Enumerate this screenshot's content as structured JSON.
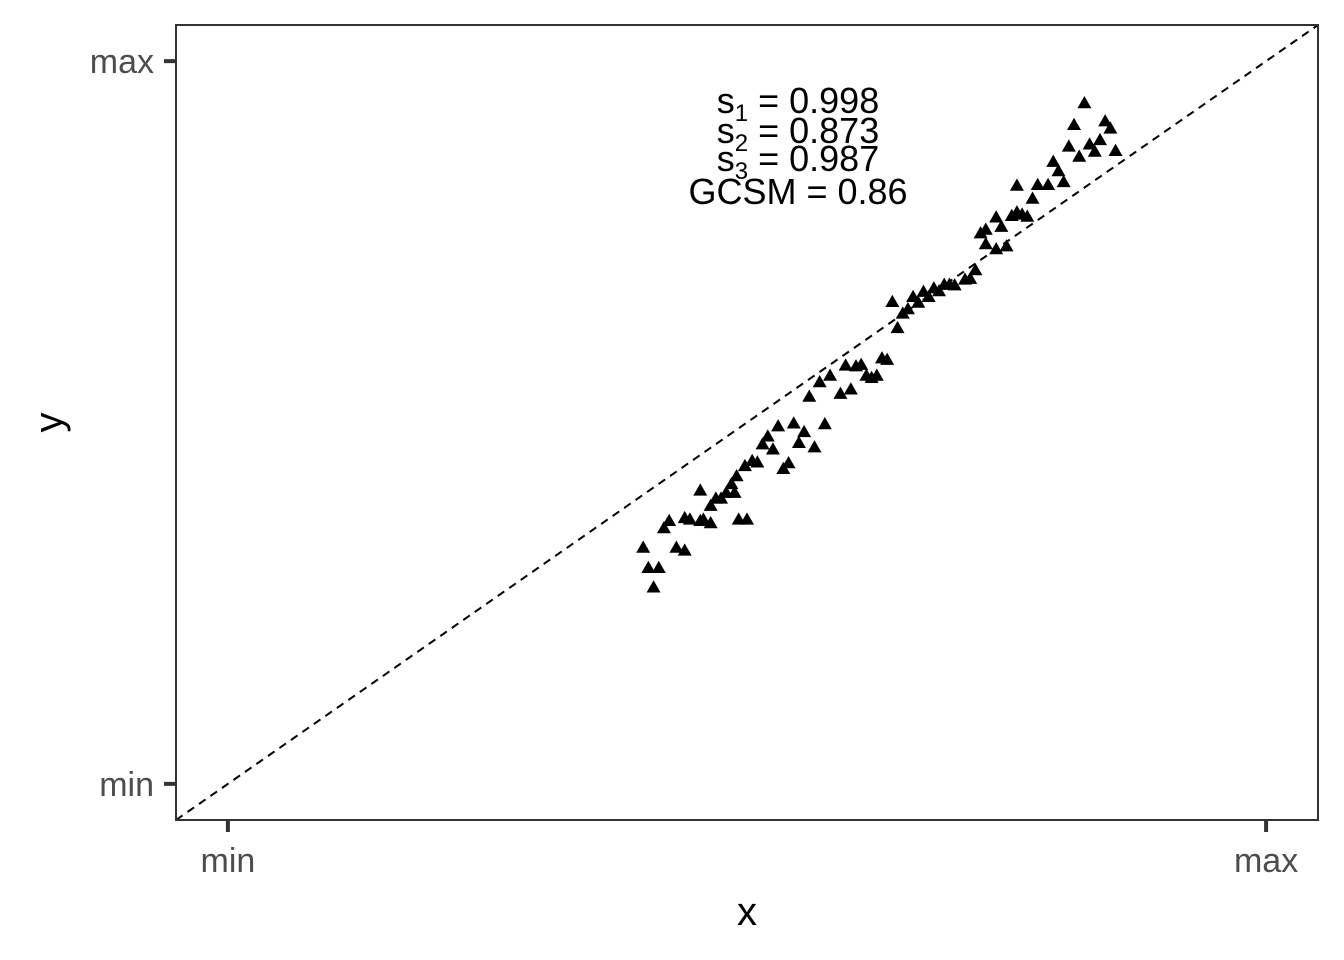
{
  "chart_data": {
    "type": "scatter",
    "xlabel": "x",
    "ylabel": "y",
    "xlim": [
      -0.05,
      1.05
    ],
    "ylim": [
      -0.05,
      1.05
    ],
    "x_ticks": [
      {
        "value": 0,
        "label": "min"
      },
      {
        "value": 1,
        "label": "max"
      }
    ],
    "y_ticks": [
      {
        "value": 0,
        "label": "min"
      },
      {
        "value": 1,
        "label": "max"
      }
    ],
    "grid": false,
    "reference_line": {
      "style": "dashed",
      "slope": 1,
      "intercept": 0
    },
    "marker": "triangle",
    "annotations": [
      {
        "name": "s",
        "sub": "1",
        "value": "0.998"
      },
      {
        "name": "s",
        "sub": "2",
        "value": "0.873"
      },
      {
        "name": "s",
        "sub": "3",
        "value": "0.987"
      },
      {
        "name": "GCSM",
        "sub": "",
        "value": "0.86"
      }
    ],
    "points": [
      [
        0.4,
        0.327
      ],
      [
        0.41,
        0.272
      ],
      [
        0.405,
        0.299
      ],
      [
        0.415,
        0.299
      ],
      [
        0.42,
        0.354
      ],
      [
        0.425,
        0.364
      ],
      [
        0.432,
        0.327
      ],
      [
        0.44,
        0.323
      ],
      [
        0.445,
        0.366
      ],
      [
        0.44,
        0.368
      ],
      [
        0.455,
        0.364
      ],
      [
        0.458,
        0.366
      ],
      [
        0.455,
        0.406
      ],
      [
        0.465,
        0.361
      ],
      [
        0.465,
        0.385
      ],
      [
        0.47,
        0.395
      ],
      [
        0.475,
        0.395
      ],
      [
        0.48,
        0.403
      ],
      [
        0.485,
        0.415
      ],
      [
        0.49,
        0.426
      ],
      [
        0.492,
        0.366
      ],
      [
        0.488,
        0.403
      ],
      [
        0.5,
        0.366
      ],
      [
        0.498,
        0.44
      ],
      [
        0.505,
        0.447
      ],
      [
        0.51,
        0.445
      ],
      [
        0.515,
        0.47
      ],
      [
        0.52,
        0.481
      ],
      [
        0.525,
        0.463
      ],
      [
        0.53,
        0.495
      ],
      [
        0.535,
        0.436
      ],
      [
        0.54,
        0.444
      ],
      [
        0.545,
        0.499
      ],
      [
        0.55,
        0.472
      ],
      [
        0.555,
        0.487
      ],
      [
        0.56,
        0.536
      ],
      [
        0.565,
        0.466
      ],
      [
        0.57,
        0.556
      ],
      [
        0.575,
        0.498
      ],
      [
        0.58,
        0.565
      ],
      [
        0.59,
        0.54
      ],
      [
        0.595,
        0.579
      ],
      [
        0.6,
        0.546
      ],
      [
        0.605,
        0.578
      ],
      [
        0.61,
        0.58
      ],
      [
        0.615,
        0.565
      ],
      [
        0.62,
        0.562
      ],
      [
        0.625,
        0.565
      ],
      [
        0.63,
        0.589
      ],
      [
        0.635,
        0.587
      ],
      [
        0.64,
        0.667
      ],
      [
        0.645,
        0.631
      ],
      [
        0.65,
        0.651
      ],
      [
        0.655,
        0.657
      ],
      [
        0.66,
        0.674
      ],
      [
        0.665,
        0.666
      ],
      [
        0.67,
        0.681
      ],
      [
        0.675,
        0.674
      ],
      [
        0.68,
        0.686
      ],
      [
        0.685,
        0.682
      ],
      [
        0.69,
        0.691
      ],
      [
        0.695,
        0.691
      ],
      [
        0.7,
        0.69
      ],
      [
        0.71,
        0.698
      ],
      [
        0.715,
        0.699
      ],
      [
        0.72,
        0.711
      ],
      [
        0.725,
        0.762
      ],
      [
        0.73,
        0.767
      ],
      [
        0.73,
        0.747
      ],
      [
        0.74,
        0.74
      ],
      [
        0.74,
        0.784
      ],
      [
        0.745,
        0.771
      ],
      [
        0.75,
        0.744
      ],
      [
        0.755,
        0.786
      ],
      [
        0.76,
        0.828
      ],
      [
        0.76,
        0.791
      ],
      [
        0.765,
        0.788
      ],
      [
        0.77,
        0.785
      ],
      [
        0.775,
        0.81
      ],
      [
        0.78,
        0.829
      ],
      [
        0.79,
        0.829
      ],
      [
        0.795,
        0.861
      ],
      [
        0.8,
        0.848
      ],
      [
        0.805,
        0.833
      ],
      [
        0.81,
        0.882
      ],
      [
        0.815,
        0.912
      ],
      [
        0.82,
        0.868
      ],
      [
        0.825,
        0.942
      ],
      [
        0.83,
        0.885
      ],
      [
        0.835,
        0.875
      ],
      [
        0.84,
        0.891
      ],
      [
        0.845,
        0.917
      ],
      [
        0.85,
        0.907
      ],
      [
        0.855,
        0.876
      ]
    ]
  }
}
